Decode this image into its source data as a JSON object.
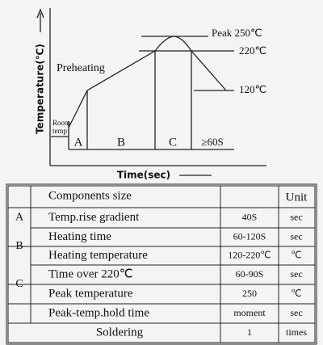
{
  "diagram": {
    "y_axis_label": "Temperature(℃)",
    "x_axis_label": "Time(sec)",
    "preheating": "Preheating",
    "room_temp": [
      "Room",
      "temp"
    ],
    "levels": [
      "Peak 250℃",
      "220℃",
      "120℃"
    ],
    "phases": [
      "A",
      "B",
      "C",
      "≥60S"
    ]
  },
  "table": {
    "header": [
      "Components size",
      "Unit"
    ],
    "groups": [
      "A",
      "B",
      "C"
    ],
    "rows": [
      [
        "Temp.rise gradient",
        "40S",
        "sec"
      ],
      [
        "Heating time",
        "60-120S",
        "sec"
      ],
      [
        "Heating temperature",
        "120-220℃",
        "℃"
      ],
      [
        "Time over 220℃",
        "60-90S",
        "sec"
      ],
      [
        "Peak temperature",
        "250",
        "℃"
      ],
      [
        "Peak-temp.hold time",
        "moment",
        "sec"
      ]
    ],
    "soldering": [
      "Soldering",
      "1",
      "times"
    ]
  }
}
